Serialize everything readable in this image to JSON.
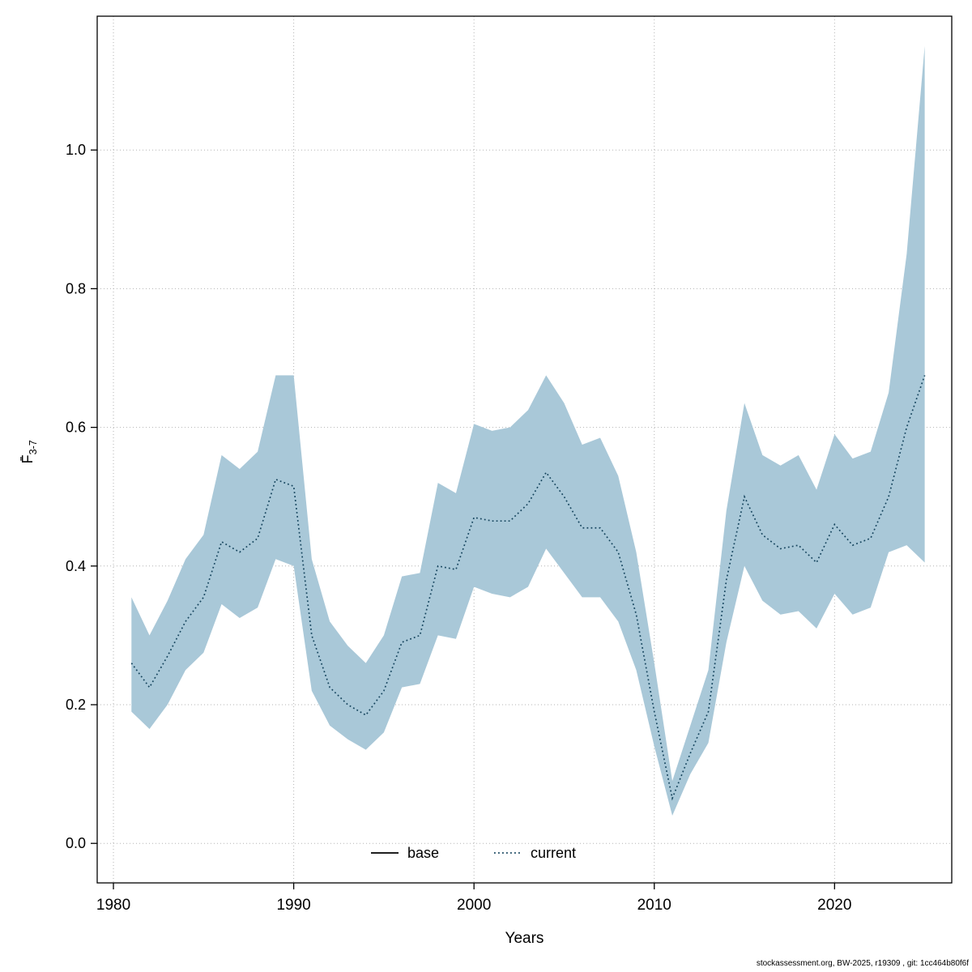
{
  "page": {
    "background": "#ffffff"
  },
  "footer": {
    "attribution": "stockassessment.org, BW-2025, r19309 , git: 1cc464b80f6f"
  },
  "chart_data": {
    "type": "line",
    "title": "",
    "xlabel": "Years",
    "ylabel": {
      "letter": "F̄",
      "subscript": "3-7"
    },
    "x": [
      1981,
      1982,
      1983,
      1984,
      1985,
      1986,
      1987,
      1988,
      1989,
      1990,
      1991,
      1992,
      1993,
      1994,
      1995,
      1996,
      1997,
      1998,
      1999,
      2000,
      2001,
      2002,
      2003,
      2004,
      2005,
      2006,
      2007,
      2008,
      2009,
      2010,
      2011,
      2012,
      2013,
      2014,
      2015,
      2016,
      2017,
      2018,
      2019,
      2020,
      2021,
      2022,
      2023,
      2024,
      2025
    ],
    "series": [
      {
        "name": "current",
        "line_style": "dotted",
        "color": "#16455e",
        "values": [
          0.26,
          0.225,
          0.27,
          0.32,
          0.355,
          0.435,
          0.42,
          0.44,
          0.525,
          0.515,
          0.3,
          0.225,
          0.2,
          0.185,
          0.22,
          0.29,
          0.3,
          0.4,
          0.395,
          0.47,
          0.465,
          0.465,
          0.49,
          0.535,
          0.5,
          0.455,
          0.455,
          0.42,
          0.33,
          0.19,
          0.065,
          0.13,
          0.19,
          0.38,
          0.5,
          0.445,
          0.425,
          0.43,
          0.405,
          0.46,
          0.43,
          0.44,
          0.5,
          0.6,
          0.675
        ]
      }
    ],
    "band": {
      "name": "confidence-interval",
      "color": "#a9c8d8",
      "lower": [
        0.19,
        0.165,
        0.2,
        0.25,
        0.275,
        0.345,
        0.325,
        0.34,
        0.41,
        0.4,
        0.22,
        0.17,
        0.15,
        0.135,
        0.16,
        0.225,
        0.23,
        0.3,
        0.295,
        0.37,
        0.36,
        0.355,
        0.37,
        0.425,
        0.39,
        0.355,
        0.355,
        0.32,
        0.25,
        0.14,
        0.04,
        0.1,
        0.145,
        0.29,
        0.4,
        0.35,
        0.33,
        0.335,
        0.31,
        0.36,
        0.33,
        0.34,
        0.42,
        0.43,
        0.405
      ],
      "upper": [
        0.355,
        0.3,
        0.35,
        0.41,
        0.445,
        0.56,
        0.54,
        0.565,
        0.675,
        0.675,
        0.41,
        0.32,
        0.285,
        0.26,
        0.3,
        0.385,
        0.39,
        0.52,
        0.505,
        0.605,
        0.595,
        0.6,
        0.625,
        0.675,
        0.635,
        0.575,
        0.585,
        0.53,
        0.42,
        0.26,
        0.09,
        0.17,
        0.25,
        0.48,
        0.635,
        0.56,
        0.545,
        0.56,
        0.51,
        0.59,
        0.555,
        0.565,
        0.65,
        0.85,
        1.15
      ]
    },
    "legend": [
      {
        "label": "base",
        "line_style": "solid",
        "color": "#000000"
      },
      {
        "label": "current",
        "line_style": "dotted",
        "color": "#16455e"
      }
    ],
    "legend_position": "bottom-center",
    "grid": true,
    "xlim": [
      1979.1,
      2026.5
    ],
    "ylim": [
      -0.057,
      1.193
    ],
    "xticks": [
      1980,
      1990,
      2000,
      2010,
      2020
    ],
    "xtick_labels": [
      "1980",
      "1990",
      "2000",
      "2010",
      "2020"
    ],
    "yticks": [
      0,
      0.2,
      0.4,
      0.6,
      0.8,
      1.0
    ],
    "ytick_labels": [
      "0.0",
      "0.2",
      "0.4",
      "0.6",
      "0.8",
      "1.0"
    ],
    "colors": {
      "grid": "#b3b3b3",
      "axis": "#000000"
    }
  }
}
